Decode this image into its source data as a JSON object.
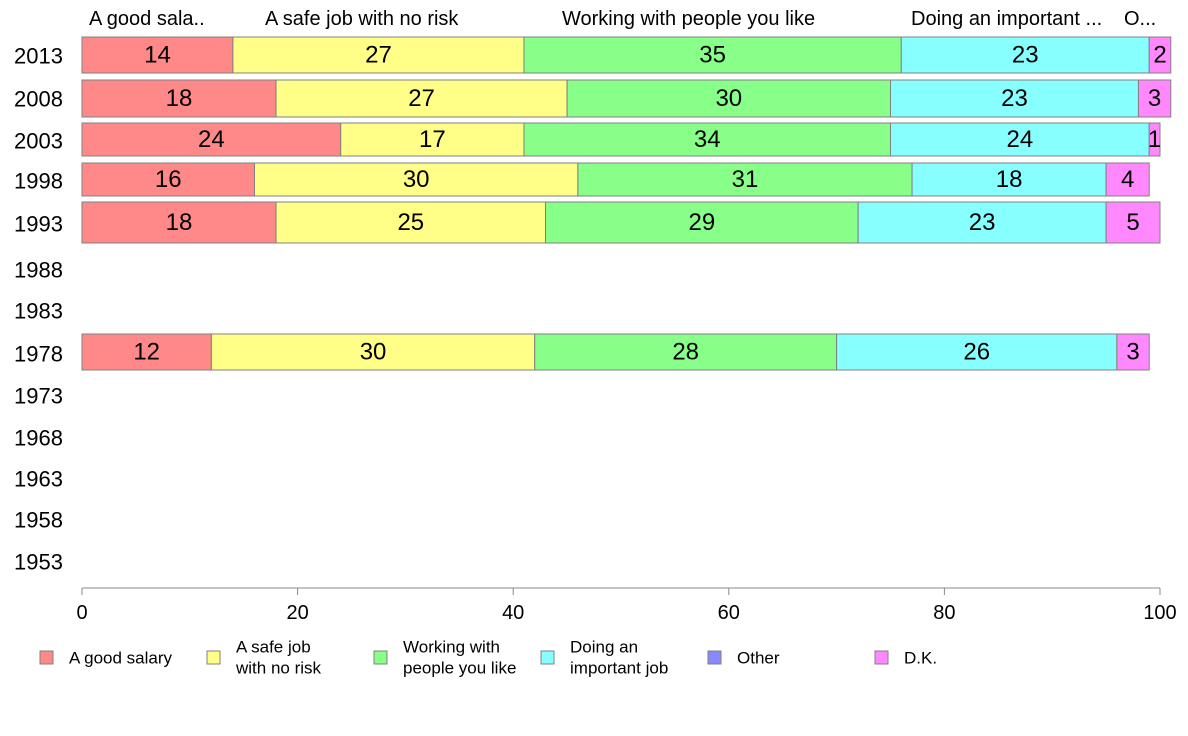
{
  "chart_data": {
    "type": "bar",
    "orientation": "horizontal",
    "stacked": true,
    "column_headers": [
      "A good sala..",
      "A safe job with no risk",
      "Working with people you like",
      "Doing an important ...",
      "O..."
    ],
    "categories": [
      "2013",
      "2008",
      "2003",
      "1998",
      "1993",
      "1988",
      "1983",
      "1978",
      "1973",
      "1968",
      "1963",
      "1958",
      "1953"
    ],
    "series": [
      {
        "name": "A good salary",
        "legend_lines": [
          "A good salary"
        ],
        "color": "#ff8888",
        "values": [
          14,
          18,
          24,
          16,
          18,
          null,
          null,
          12,
          null,
          null,
          null,
          null,
          null
        ]
      },
      {
        "name": "A safe job with no risk",
        "legend_lines": [
          "A safe job",
          "with no risk"
        ],
        "color": "#ffff88",
        "values": [
          27,
          27,
          17,
          30,
          25,
          null,
          null,
          30,
          null,
          null,
          null,
          null,
          null
        ]
      },
      {
        "name": "Working with people you like",
        "legend_lines": [
          "Working with",
          "people you like"
        ],
        "color": "#88ff88",
        "values": [
          35,
          30,
          34,
          31,
          29,
          null,
          null,
          28,
          null,
          null,
          null,
          null,
          null
        ]
      },
      {
        "name": "Doing an important job",
        "legend_lines": [
          "Doing an",
          "important job"
        ],
        "color": "#88ffff",
        "values": [
          23,
          23,
          24,
          18,
          23,
          null,
          null,
          26,
          null,
          null,
          null,
          null,
          null
        ]
      },
      {
        "name": "Other",
        "legend_lines": [
          "Other"
        ],
        "color": "#8888ff",
        "values": [
          null,
          null,
          null,
          null,
          null,
          null,
          null,
          null,
          null,
          null,
          null,
          null,
          null
        ]
      },
      {
        "name": "D.K.",
        "legend_lines": [
          "D.K."
        ],
        "color": "#ff88ff",
        "values": [
          2,
          3,
          1,
          4,
          5,
          null,
          null,
          3,
          null,
          null,
          null,
          null,
          null
        ]
      }
    ],
    "xlim": [
      0,
      100
    ],
    "xticks": [
      0,
      20,
      40,
      60,
      80,
      100
    ],
    "grid": false,
    "legend_position": "bottom",
    "title": "",
    "xlabel": "",
    "ylabel": ""
  }
}
